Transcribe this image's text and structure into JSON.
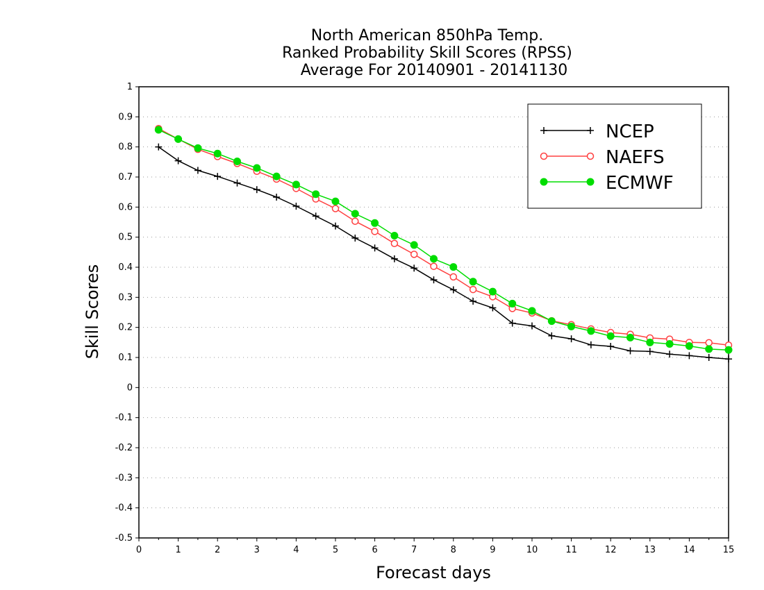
{
  "chart_data": {
    "type": "line",
    "title": [
      "North American 850hPa Temp.",
      "Ranked Probability Skill Scores (RPSS)",
      "Average For 20140901 - 20141130"
    ],
    "xlabel": "Forecast days",
    "ylabel": "Skill Scores",
    "xlim": [
      0,
      15
    ],
    "ylim": [
      -0.5,
      1
    ],
    "xticks": [
      "0",
      "1",
      "2",
      "3",
      "4",
      "5",
      "6",
      "7",
      "8",
      "9",
      "10",
      "11",
      "12",
      "13",
      "14",
      "15"
    ],
    "yticks": [
      "1",
      "0.9",
      "0.8",
      "0.7",
      "0.6",
      "0.5",
      "0.4",
      "0.3",
      "0.2",
      "0.1",
      "0",
      "-0.1",
      "-0.2",
      "-0.3",
      "-0.4",
      "-0.5"
    ],
    "grid": "horizontal dotted",
    "legend_position": "top-right",
    "x": [
      0.5,
      1,
      1.5,
      2,
      2.5,
      3,
      3.5,
      4,
      4.5,
      5,
      5.5,
      6,
      6.5,
      7,
      7.5,
      8,
      8.5,
      9,
      9.5,
      10,
      10.5,
      11,
      11.5,
      12,
      12.5,
      13,
      13.5,
      14,
      14.5,
      15
    ],
    "series": [
      {
        "name": "NCEP",
        "color": "#000000",
        "marker": "plus",
        "values": [
          0.8,
          0.754,
          0.722,
          0.702,
          0.68,
          0.658,
          0.633,
          0.603,
          0.57,
          0.537,
          0.497,
          0.464,
          0.428,
          0.397,
          0.358,
          0.325,
          0.287,
          0.265,
          0.214,
          0.205,
          0.172,
          0.162,
          0.142,
          0.137,
          0.122,
          0.12,
          0.111,
          0.106,
          0.1,
          0.095
        ]
      },
      {
        "name": "NAEFS",
        "color": "#ff4040",
        "marker": "open-circle",
        "values": [
          0.861,
          0.826,
          0.792,
          0.768,
          0.745,
          0.719,
          0.693,
          0.662,
          0.627,
          0.595,
          0.553,
          0.519,
          0.479,
          0.443,
          0.403,
          0.368,
          0.326,
          0.302,
          0.263,
          0.248,
          0.222,
          0.209,
          0.195,
          0.183,
          0.177,
          0.165,
          0.161,
          0.15,
          0.149,
          0.141
        ]
      },
      {
        "name": "ECMWF",
        "color": "#00dd00",
        "marker": "filled-circle",
        "values": [
          0.857,
          0.826,
          0.796,
          0.778,
          0.752,
          0.73,
          0.702,
          0.675,
          0.643,
          0.619,
          0.578,
          0.547,
          0.505,
          0.474,
          0.428,
          0.401,
          0.352,
          0.319,
          0.279,
          0.255,
          0.221,
          0.203,
          0.188,
          0.171,
          0.166,
          0.15,
          0.145,
          0.138,
          0.128,
          0.125
        ]
      }
    ]
  }
}
